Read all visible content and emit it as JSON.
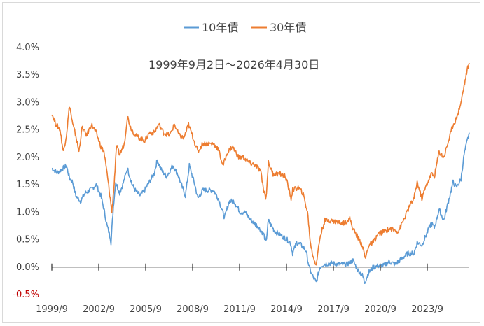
{
  "chart_data": {
    "type": "line",
    "subtitle": "1999年9月2日～2026年4月30日",
    "xlabel": "",
    "ylabel": "",
    "ylim": [
      -0.5,
      4.0
    ],
    "y_ticks": [
      "-0.5%",
      "0.0%",
      "0.5%",
      "1.0%",
      "1.5%",
      "2.0%",
      "2.5%",
      "3.0%",
      "3.5%",
      "4.0%"
    ],
    "x_ticks": [
      "1999/9",
      "2002/9",
      "2005/9",
      "2008/9",
      "2011/9",
      "2014/9",
      "2017/9",
      "2020/9",
      "2023/9"
    ],
    "xlim": [
      1999.67,
      2026.33
    ],
    "legend_position": "top-center",
    "grid": false,
    "series": [
      {
        "name": "10年債",
        "color": "#5b9bd5",
        "points": [
          [
            1999.67,
            1.8
          ],
          [
            2000.0,
            1.72
          ],
          [
            2000.3,
            1.78
          ],
          [
            2000.6,
            1.85
          ],
          [
            2000.8,
            1.62
          ],
          [
            2001.0,
            1.55
          ],
          [
            2001.2,
            1.3
          ],
          [
            2001.5,
            1.2
          ],
          [
            2001.8,
            1.35
          ],
          [
            2002.2,
            1.42
          ],
          [
            2002.5,
            1.5
          ],
          [
            2002.8,
            1.3
          ],
          [
            2003.0,
            1.05
          ],
          [
            2003.2,
            0.75
          ],
          [
            2003.4,
            0.55
          ],
          [
            2003.45,
            0.45
          ],
          [
            2003.6,
            1.1
          ],
          [
            2003.75,
            1.55
          ],
          [
            2004.0,
            1.35
          ],
          [
            2004.2,
            1.5
          ],
          [
            2004.5,
            1.8
          ],
          [
            2004.8,
            1.5
          ],
          [
            2005.0,
            1.4
          ],
          [
            2005.3,
            1.3
          ],
          [
            2005.6,
            1.4
          ],
          [
            2005.9,
            1.55
          ],
          [
            2006.2,
            1.7
          ],
          [
            2006.4,
            1.95
          ],
          [
            2006.7,
            1.75
          ],
          [
            2007.0,
            1.65
          ],
          [
            2007.4,
            1.85
          ],
          [
            2007.7,
            1.7
          ],
          [
            2008.0,
            1.45
          ],
          [
            2008.2,
            1.3
          ],
          [
            2008.45,
            1.85
          ],
          [
            2008.8,
            1.5
          ],
          [
            2009.0,
            1.25
          ],
          [
            2009.3,
            1.4
          ],
          [
            2009.6,
            1.4
          ],
          [
            2010.0,
            1.4
          ],
          [
            2010.3,
            1.25
          ],
          [
            2010.7,
            0.9
          ],
          [
            2011.0,
            1.2
          ],
          [
            2011.3,
            1.2
          ],
          [
            2011.7,
            1.0
          ],
          [
            2012.0,
            1.0
          ],
          [
            2012.4,
            0.85
          ],
          [
            2012.8,
            0.75
          ],
          [
            2013.2,
            0.6
          ],
          [
            2013.35,
            0.45
          ],
          [
            2013.5,
            0.85
          ],
          [
            2013.9,
            0.65
          ],
          [
            2014.2,
            0.6
          ],
          [
            2014.6,
            0.52
          ],
          [
            2014.9,
            0.45
          ],
          [
            2015.05,
            0.25
          ],
          [
            2015.3,
            0.45
          ],
          [
            2015.6,
            0.4
          ],
          [
            2015.9,
            0.3
          ],
          [
            2016.1,
            0.0
          ],
          [
            2016.3,
            -0.15
          ],
          [
            2016.55,
            -0.28
          ],
          [
            2016.8,
            0.0
          ],
          [
            2017.0,
            0.05
          ],
          [
            2017.5,
            0.07
          ],
          [
            2018.0,
            0.05
          ],
          [
            2018.5,
            0.05
          ],
          [
            2018.9,
            0.12
          ],
          [
            2019.2,
            -0.05
          ],
          [
            2019.5,
            -0.15
          ],
          [
            2019.65,
            -0.28
          ],
          [
            2019.9,
            -0.1
          ],
          [
            2020.2,
            0.0
          ],
          [
            2020.5,
            0.02
          ],
          [
            2020.9,
            0.03
          ],
          [
            2021.2,
            0.1
          ],
          [
            2021.6,
            0.05
          ],
          [
            2022.0,
            0.15
          ],
          [
            2022.4,
            0.25
          ],
          [
            2022.8,
            0.25
          ],
          [
            2023.0,
            0.45
          ],
          [
            2023.3,
            0.4
          ],
          [
            2023.6,
            0.6
          ],
          [
            2023.9,
            0.8
          ],
          [
            2024.1,
            0.72
          ],
          [
            2024.4,
            1.05
          ],
          [
            2024.7,
            0.85
          ],
          [
            2025.0,
            1.2
          ],
          [
            2025.3,
            1.55
          ],
          [
            2025.5,
            1.45
          ],
          [
            2025.8,
            1.6
          ],
          [
            2026.0,
            2.05
          ],
          [
            2026.2,
            2.3
          ],
          [
            2026.33,
            2.45
          ]
        ]
      },
      {
        "name": "30年債",
        "color": "#ed7d31",
        "points": [
          [
            1999.67,
            2.8
          ],
          [
            1999.9,
            2.62
          ],
          [
            2000.2,
            2.5
          ],
          [
            2000.4,
            2.1
          ],
          [
            2000.6,
            2.4
          ],
          [
            2000.8,
            2.95
          ],
          [
            2001.0,
            2.6
          ],
          [
            2001.2,
            2.4
          ],
          [
            2001.4,
            2.1
          ],
          [
            2001.6,
            2.55
          ],
          [
            2001.9,
            2.4
          ],
          [
            2002.2,
            2.6
          ],
          [
            2002.5,
            2.45
          ],
          [
            2002.8,
            2.2
          ],
          [
            2003.0,
            2.1
          ],
          [
            2003.2,
            1.7
          ],
          [
            2003.4,
            1.25
          ],
          [
            2003.5,
            1.0
          ],
          [
            2003.65,
            1.5
          ],
          [
            2003.8,
            2.2
          ],
          [
            2004.0,
            2.05
          ],
          [
            2004.3,
            2.25
          ],
          [
            2004.5,
            2.75
          ],
          [
            2004.7,
            2.55
          ],
          [
            2005.0,
            2.4
          ],
          [
            2005.3,
            2.35
          ],
          [
            2005.6,
            2.3
          ],
          [
            2005.9,
            2.45
          ],
          [
            2006.2,
            2.45
          ],
          [
            2006.5,
            2.6
          ],
          [
            2006.8,
            2.45
          ],
          [
            2007.2,
            2.4
          ],
          [
            2007.5,
            2.6
          ],
          [
            2007.8,
            2.4
          ],
          [
            2008.1,
            2.35
          ],
          [
            2008.4,
            2.6
          ],
          [
            2008.7,
            2.35
          ],
          [
            2009.0,
            2.1
          ],
          [
            2009.3,
            2.25
          ],
          [
            2009.6,
            2.25
          ],
          [
            2010.0,
            2.25
          ],
          [
            2010.3,
            2.15
          ],
          [
            2010.6,
            1.85
          ],
          [
            2010.9,
            2.1
          ],
          [
            2011.2,
            2.2
          ],
          [
            2011.6,
            2.0
          ],
          [
            2011.9,
            2.0
          ],
          [
            2012.3,
            1.9
          ],
          [
            2012.7,
            1.85
          ],
          [
            2013.0,
            1.75
          ],
          [
            2013.2,
            1.4
          ],
          [
            2013.35,
            1.25
          ],
          [
            2013.5,
            1.9
          ],
          [
            2013.8,
            1.7
          ],
          [
            2014.2,
            1.7
          ],
          [
            2014.6,
            1.65
          ],
          [
            2014.95,
            1.25
          ],
          [
            2015.05,
            1.4
          ],
          [
            2015.4,
            1.45
          ],
          [
            2015.7,
            1.35
          ],
          [
            2016.0,
            1.0
          ],
          [
            2016.2,
            0.4
          ],
          [
            2016.4,
            0.15
          ],
          [
            2016.55,
            0.05
          ],
          [
            2016.8,
            0.55
          ],
          [
            2017.1,
            0.85
          ],
          [
            2017.5,
            0.85
          ],
          [
            2017.9,
            0.82
          ],
          [
            2018.3,
            0.8
          ],
          [
            2018.7,
            0.88
          ],
          [
            2018.9,
            0.7
          ],
          [
            2019.2,
            0.55
          ],
          [
            2019.5,
            0.4
          ],
          [
            2019.7,
            0.15
          ],
          [
            2019.9,
            0.4
          ],
          [
            2020.2,
            0.45
          ],
          [
            2020.5,
            0.6
          ],
          [
            2020.9,
            0.65
          ],
          [
            2021.3,
            0.7
          ],
          [
            2021.8,
            0.65
          ],
          [
            2022.2,
            0.9
          ],
          [
            2022.5,
            1.1
          ],
          [
            2022.8,
            1.25
          ],
          [
            2023.0,
            1.55
          ],
          [
            2023.3,
            1.25
          ],
          [
            2023.6,
            1.5
          ],
          [
            2023.9,
            1.7
          ],
          [
            2024.1,
            1.65
          ],
          [
            2024.4,
            2.1
          ],
          [
            2024.7,
            2.0
          ],
          [
            2025.0,
            2.3
          ],
          [
            2025.3,
            2.6
          ],
          [
            2025.5,
            2.7
          ],
          [
            2025.8,
            3.0
          ],
          [
            2026.0,
            3.3
          ],
          [
            2026.2,
            3.6
          ],
          [
            2026.33,
            3.72
          ]
        ]
      }
    ]
  }
}
